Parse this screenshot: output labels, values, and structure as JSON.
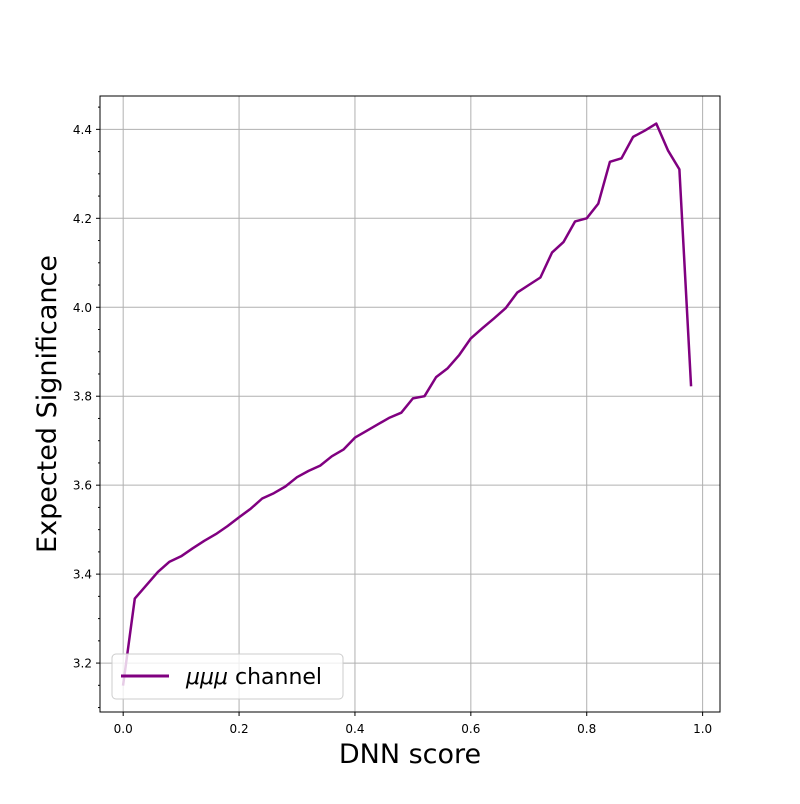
{
  "chart_data": {
    "type": "line",
    "title": "",
    "xlabel": "DNN score",
    "ylabel": "Expected Significance",
    "xlim": [
      -0.04,
      1.03
    ],
    "ylim": [
      3.09,
      4.475
    ],
    "x_ticks": [
      0.0,
      0.2,
      0.4,
      0.6,
      0.8,
      1.0
    ],
    "x_tick_labels": [
      "0.0",
      "0.2",
      "0.4",
      "0.6",
      "0.8",
      "1.0"
    ],
    "y_ticks": [
      3.2,
      3.4,
      3.6,
      3.8,
      4.0,
      4.2,
      4.4
    ],
    "y_tick_labels": [
      "3.2",
      "3.4",
      "3.6",
      "3.8",
      "4.0",
      "4.2",
      "4.4"
    ],
    "grid": true,
    "legend_position": "lower-left",
    "series": [
      {
        "name_prefix": "μμμ",
        "name_suffix": " channel",
        "color": "#800080",
        "x": [
          0.0,
          0.02,
          0.04,
          0.06,
          0.08,
          0.1,
          0.12,
          0.14,
          0.16,
          0.18,
          0.2,
          0.22,
          0.24,
          0.26,
          0.28,
          0.3,
          0.32,
          0.34,
          0.36,
          0.38,
          0.4,
          0.42,
          0.44,
          0.46,
          0.48,
          0.5,
          0.52,
          0.54,
          0.56,
          0.58,
          0.6,
          0.62,
          0.64,
          0.66,
          0.68,
          0.7,
          0.72,
          0.74,
          0.76,
          0.78,
          0.8,
          0.82,
          0.84,
          0.86,
          0.88,
          0.9,
          0.92,
          0.94,
          0.96,
          0.98
        ],
        "y": [
          3.152,
          3.345,
          3.375,
          3.405,
          3.428,
          3.44,
          3.458,
          3.475,
          3.49,
          3.508,
          3.528,
          3.547,
          3.57,
          3.582,
          3.597,
          3.618,
          3.632,
          3.644,
          3.665,
          3.68,
          3.707,
          3.722,
          3.737,
          3.752,
          3.763,
          3.795,
          3.8,
          3.843,
          3.863,
          3.893,
          3.93,
          3.953,
          3.975,
          3.998,
          4.033,
          4.05,
          4.067,
          4.123,
          4.147,
          4.193,
          4.2,
          4.233,
          4.327,
          4.335,
          4.383,
          4.397,
          4.413,
          4.353,
          4.31,
          3.825
        ]
      }
    ]
  }
}
